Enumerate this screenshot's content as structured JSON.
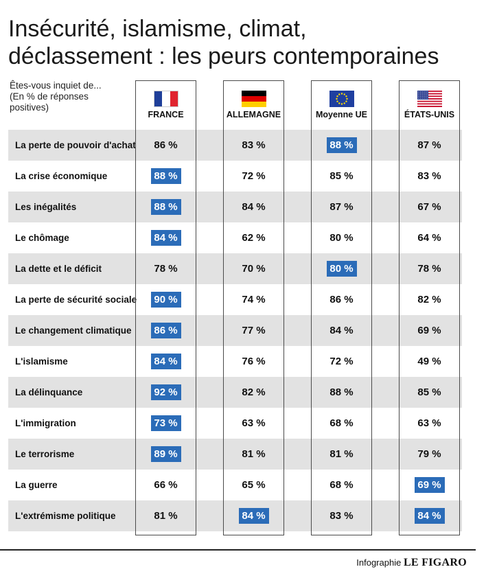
{
  "title_lines": [
    "Insécurité, islamisme, climat,",
    "déclassement : les peurs contemporaines"
  ],
  "subtitle_lines": [
    "Êtes-vous inquiet de...",
    "(En % de réponses",
    "positives)"
  ],
  "colors": {
    "highlight": "#2b6cb8",
    "row_shading": "#e2e2e2",
    "frame": "#4a4a4a"
  },
  "footer": {
    "label": "Infographie",
    "brand": "LE FIGARO"
  },
  "chart_data": {
    "type": "table",
    "unit": "%",
    "columns": [
      {
        "name": "FRANCE",
        "flag": "france-flag-icon"
      },
      {
        "name": "ALLEMAGNE",
        "flag": "germany-flag-icon"
      },
      {
        "name": "Moyenne UE",
        "flag": "eu-flag-icon"
      },
      {
        "name": "ÉTATS-UNIS",
        "flag": "usa-flag-icon"
      }
    ],
    "rows": [
      {
        "label": "La perte de pouvoir d'achat",
        "values": [
          86,
          83,
          88,
          87
        ],
        "highlight": [
          false,
          false,
          true,
          false
        ]
      },
      {
        "label": "La crise économique",
        "values": [
          88,
          72,
          85,
          83
        ],
        "highlight": [
          true,
          false,
          false,
          false
        ]
      },
      {
        "label": "Les inégalités",
        "values": [
          88,
          84,
          87,
          67
        ],
        "highlight": [
          true,
          false,
          false,
          false
        ]
      },
      {
        "label": "Le chômage",
        "values": [
          84,
          62,
          80,
          64
        ],
        "highlight": [
          true,
          false,
          false,
          false
        ]
      },
      {
        "label": "La dette et le déficit",
        "values": [
          78,
          70,
          80,
          78
        ],
        "highlight": [
          false,
          false,
          true,
          false
        ]
      },
      {
        "label": "La perte de sécurité sociale",
        "values": [
          90,
          74,
          86,
          82
        ],
        "highlight": [
          true,
          false,
          false,
          false
        ]
      },
      {
        "label": "Le changement climatique",
        "values": [
          86,
          77,
          84,
          69
        ],
        "highlight": [
          true,
          false,
          false,
          false
        ]
      },
      {
        "label": "L'islamisme",
        "values": [
          84,
          76,
          72,
          49
        ],
        "highlight": [
          true,
          false,
          false,
          false
        ]
      },
      {
        "label": "La délinquance",
        "values": [
          92,
          82,
          88,
          85
        ],
        "highlight": [
          true,
          false,
          false,
          false
        ]
      },
      {
        "label": "L'immigration",
        "values": [
          73,
          63,
          68,
          63
        ],
        "highlight": [
          true,
          false,
          false,
          false
        ]
      },
      {
        "label": "Le terrorisme",
        "values": [
          89,
          81,
          81,
          79
        ],
        "highlight": [
          true,
          false,
          false,
          false
        ]
      },
      {
        "label": "La guerre",
        "values": [
          66,
          65,
          68,
          69
        ],
        "highlight": [
          false,
          false,
          false,
          true
        ]
      },
      {
        "label": "L'extrémisme politique",
        "values": [
          81,
          84,
          83,
          84
        ],
        "highlight": [
          false,
          true,
          false,
          true
        ]
      }
    ]
  }
}
